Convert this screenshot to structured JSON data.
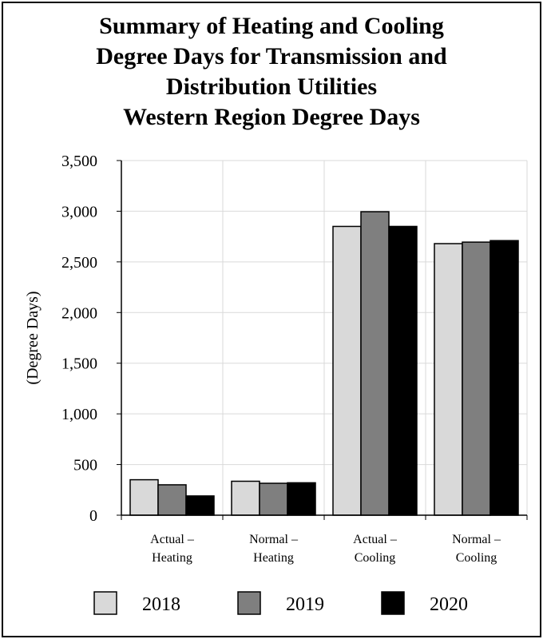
{
  "chart_data": {
    "type": "bar",
    "title_lines": [
      "Summary of Heating and Cooling",
      "Degree Days for Transmission and",
      "Distribution Utilities",
      "Western Region Degree Days"
    ],
    "ylabel": "(Degree Days)",
    "xlabel": "",
    "ylim": [
      0,
      3500
    ],
    "yticks": [
      0,
      500,
      1000,
      1500,
      2000,
      2500,
      3000,
      3500
    ],
    "ytick_labels": [
      "0",
      "500",
      "1,000",
      "1,500",
      "2,000",
      "2,500",
      "3,000",
      "3,500"
    ],
    "grid": true,
    "categories": [
      [
        "Actual –",
        "Heating"
      ],
      [
        "Normal –",
        "Heating"
      ],
      [
        "Actual –",
        "Cooling"
      ],
      [
        "Normal –",
        "Cooling"
      ]
    ],
    "series": [
      {
        "name": "2018",
        "color": "#d9d9d9",
        "values": [
          350,
          335,
          2850,
          2680
        ]
      },
      {
        "name": "2019",
        "color": "#7f7f7f",
        "values": [
          300,
          315,
          2995,
          2695
        ]
      },
      {
        "name": "2020",
        "color": "#000000",
        "values": [
          190,
          320,
          2850,
          2710
        ]
      }
    ],
    "legend_position": "bottom"
  }
}
